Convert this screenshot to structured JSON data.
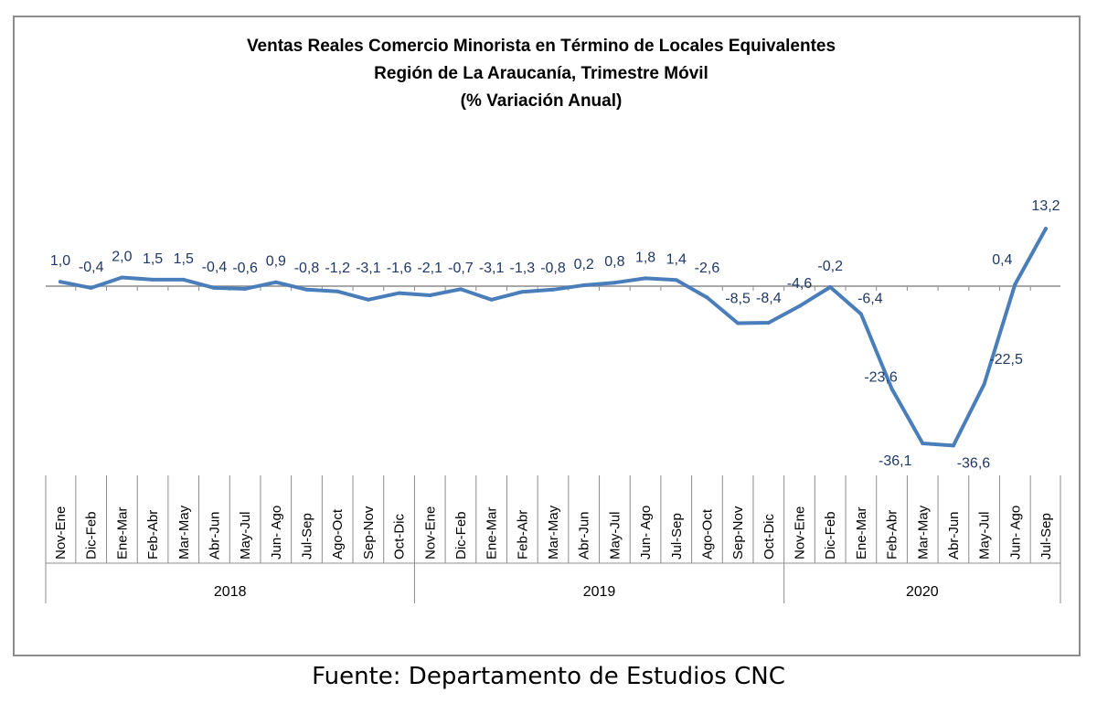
{
  "chart_data": {
    "type": "line",
    "title": [
      "Ventas Reales Comercio Minorista  en Término de Locales Equivalentes",
      "Región de La Araucanía, Trimestre Móvil",
      "(% Variación Anual)"
    ],
    "categories": [
      "Nov-Ene",
      "Dic-Feb",
      "Ene-Mar",
      "Feb-Abr",
      "Mar-May",
      "Abr-Jun",
      "May-Jul",
      "Jun- Ago",
      "Jul-Sep",
      "Ago-Oct",
      "Sep-Nov",
      "Oct-Dic",
      "Nov-Ene",
      "Dic-Feb",
      "Ene-Mar",
      "Feb-Abr",
      "Mar-May",
      "Abr-Jun",
      "May-Jul",
      "Jun- Ago",
      "Jul-Sep",
      "Ago-Oct",
      "Sep-Nov",
      "Oct-Dic",
      "Nov-Ene",
      "Dic-Feb",
      "Ene-Mar",
      "Feb-Abr",
      "Mar-May",
      "Abr-Jun",
      "May-Jul",
      "Jun- Ago",
      "Jul-Sep"
    ],
    "groups": [
      {
        "label": "2018",
        "start": 0,
        "end": 11
      },
      {
        "label": "2019",
        "start": 12,
        "end": 23
      },
      {
        "label": "2020",
        "start": 24,
        "end": 32
      }
    ],
    "values": [
      1.0,
      -0.4,
      2.0,
      1.5,
      1.5,
      -0.4,
      -0.6,
      0.9,
      -0.8,
      -1.2,
      -3.1,
      -1.6,
      -2.1,
      -0.7,
      -3.1,
      -1.3,
      -0.8,
      0.2,
      0.8,
      1.8,
      1.4,
      -2.6,
      -8.5,
      -8.4,
      -4.6,
      -0.2,
      -6.4,
      -23.6,
      -36.1,
      -36.6,
      -22.5,
      0.4,
      13.2
    ],
    "data_labels": [
      "1,0",
      "-0,4",
      "2,0",
      "1,5",
      "1,5",
      "-0,4",
      "-0,6",
      "0,9",
      "-0,8",
      "-1,2",
      "-3,1",
      "-1,6",
      "-2,1",
      "-0,7",
      "-3,1",
      "-1,3",
      "-0,8",
      "0,2",
      "0,8",
      "1,8",
      "1,4",
      "-2,6",
      "-8,5",
      "-8,4",
      "-4,6",
      "-0,2",
      "-6,4",
      "-23,6",
      "-36,1",
      "-36,6",
      "-22,5",
      "0,4",
      "13,2"
    ],
    "line_color": "#4a7ebb",
    "label_color": "#1f3864",
    "ylim": [
      -40,
      16
    ],
    "grid": false,
    "legend": "none"
  },
  "source": "Fuente: Departamento de Estudios CNC"
}
